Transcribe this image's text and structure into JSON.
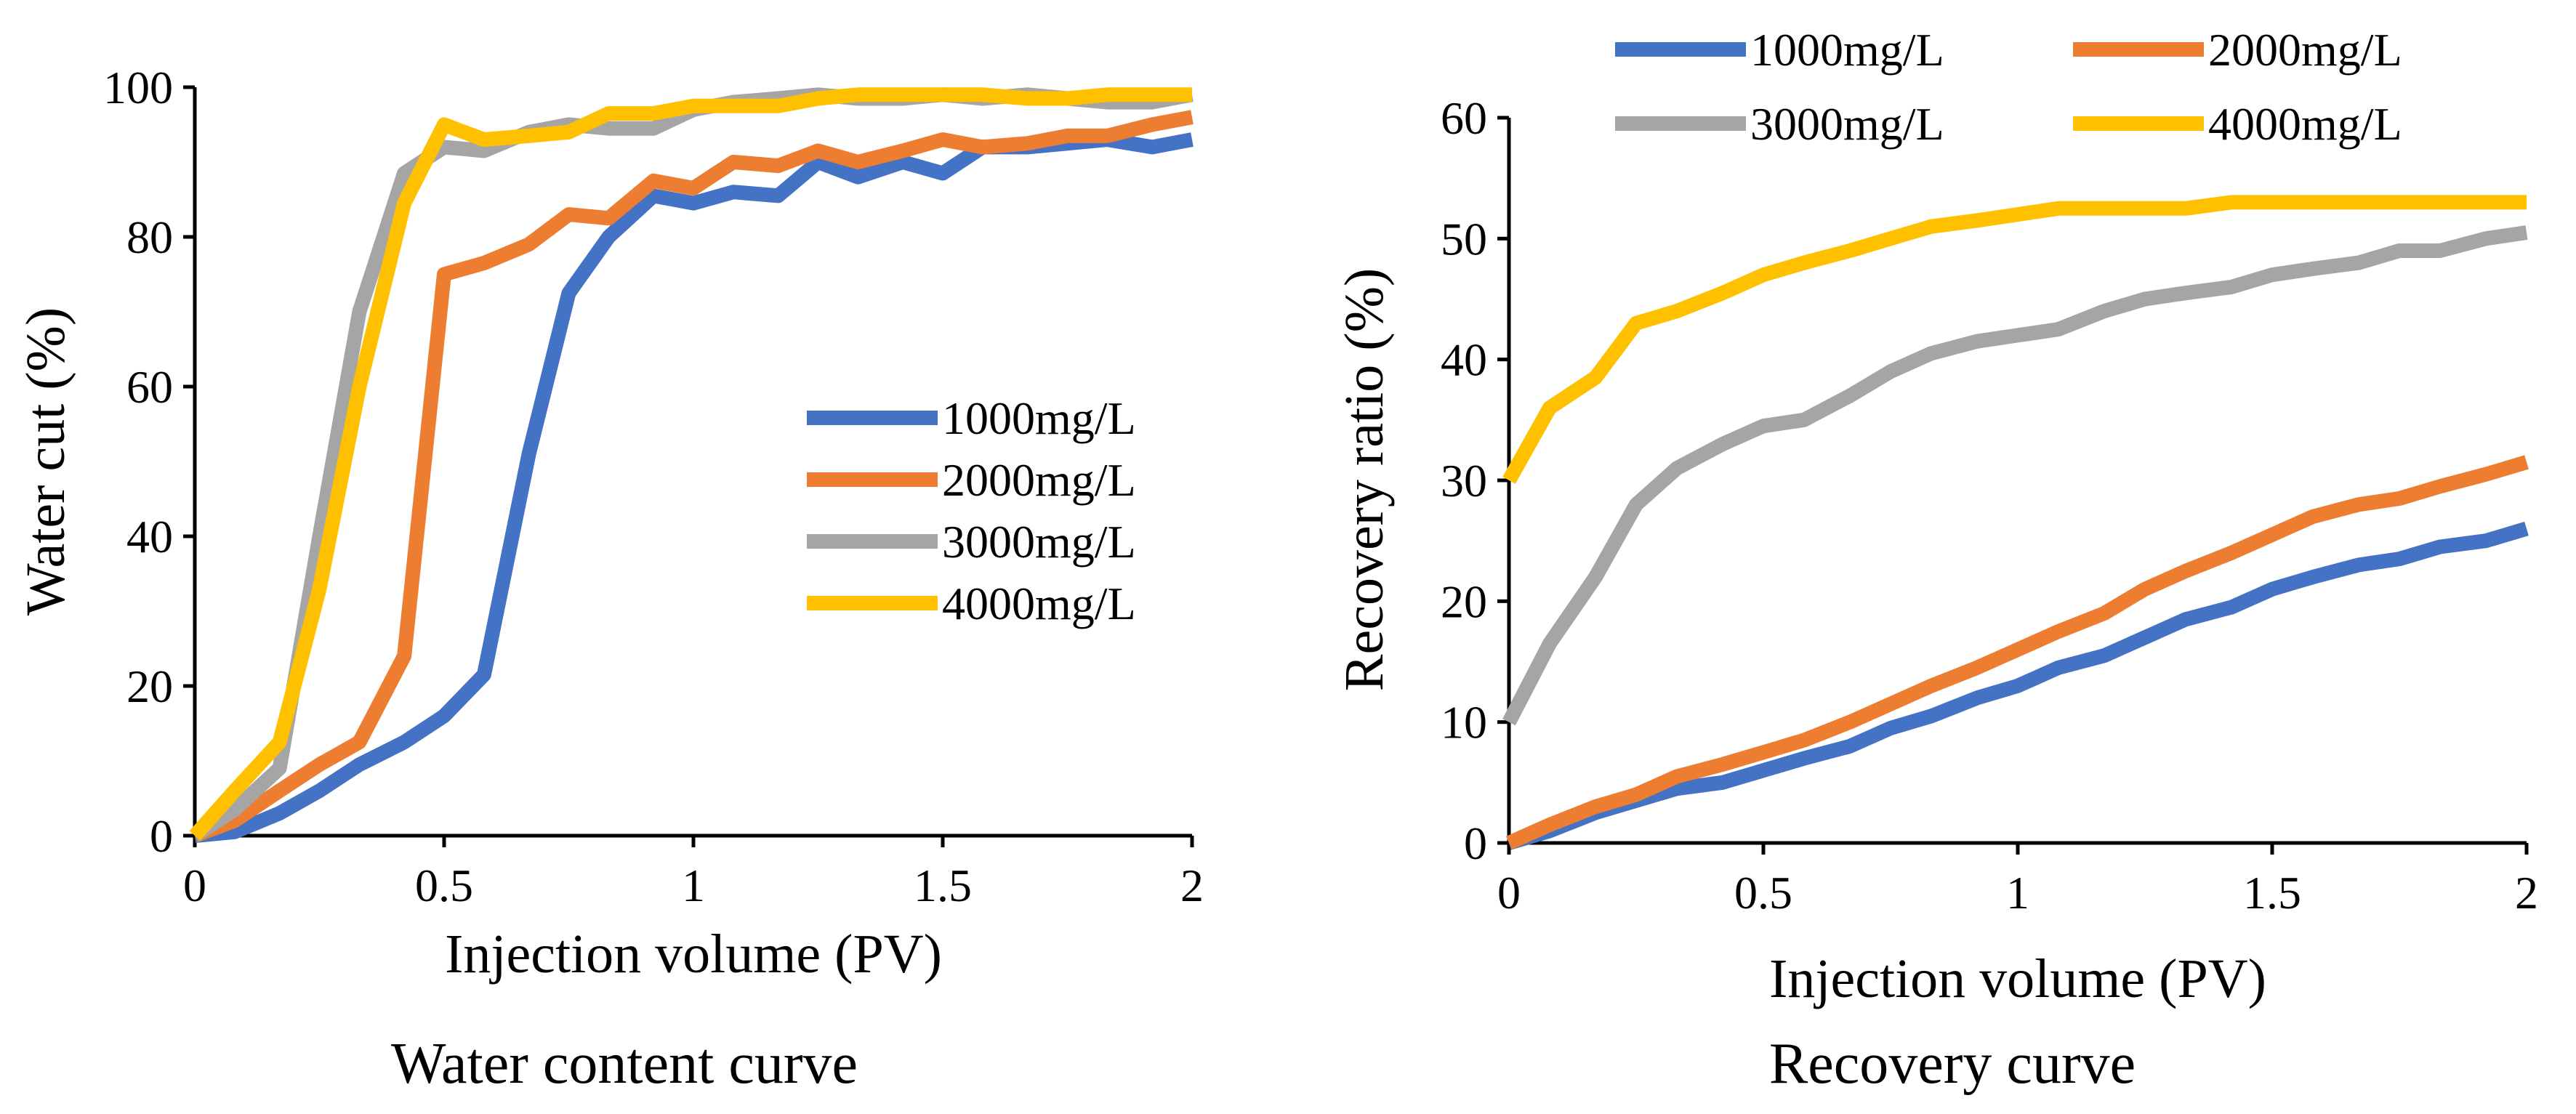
{
  "colors": {
    "1000mg/L": "#4472C4",
    "2000mg/L": "#ED7D31",
    "3000mg/L": "#A5A5A5",
    "4000mg/L": "#FFC000"
  },
  "chart_data": [
    {
      "type": "line",
      "caption": "Water content curve",
      "xlabel": "Injection volume (PV)",
      "ylabel": "Water cut (%)",
      "xlim": [
        0,
        2
      ],
      "ylim": [
        0,
        100
      ],
      "xticks": [
        0,
        0.5,
        1,
        1.5,
        2
      ],
      "xtick_labels": [
        "0",
        "0.5",
        "1",
        "1.5",
        "2"
      ],
      "yticks": [
        0,
        20,
        40,
        60,
        80,
        100
      ],
      "ytick_labels": [
        "0",
        "20",
        "40",
        "60",
        "80",
        "100"
      ],
      "legend_position": "center-right",
      "x": [
        0,
        0.08,
        0.17,
        0.25,
        0.33,
        0.42,
        0.5,
        0.58,
        0.67,
        0.75,
        0.83,
        0.92,
        1.0,
        1.08,
        1.17,
        1.25,
        1.33,
        1.42,
        1.5,
        1.58,
        1.67,
        1.75,
        1.83,
        1.92,
        2.0
      ],
      "series": [
        {
          "name": "1000mg/L",
          "values": [
            0,
            0.5,
            3,
            6,
            9.5,
            12.5,
            16,
            21.5,
            51,
            72.5,
            80,
            85.5,
            84.5,
            86,
            85.5,
            90,
            88,
            90,
            88.5,
            92,
            92,
            92.5,
            93,
            92,
            93
          ]
        },
        {
          "name": "2000mg/L",
          "values": [
            0,
            2,
            6,
            9.5,
            12.5,
            24,
            75,
            76.5,
            79,
            83,
            82.5,
            87.5,
            86.5,
            90,
            89.5,
            91.5,
            90,
            91.5,
            93,
            92,
            92.5,
            93.5,
            93.5,
            95,
            96
          ]
        },
        {
          "name": "3000mg/L",
          "values": [
            0,
            3.5,
            9,
            40,
            70,
            88.5,
            92,
            91.5,
            94,
            95,
            94.5,
            94.5,
            97,
            98,
            98.5,
            99,
            98.5,
            98.5,
            99,
            98.5,
            99,
            98.5,
            98,
            98,
            99
          ]
        },
        {
          "name": "4000mg/L",
          "values": [
            0,
            6,
            12.5,
            33,
            60,
            84.5,
            95,
            93,
            93.5,
            94,
            96.5,
            96.5,
            97.5,
            97.5,
            97.5,
            98.5,
            99,
            99,
            99,
            99,
            98.5,
            98.5,
            99,
            99,
            99
          ]
        }
      ]
    },
    {
      "type": "line",
      "caption": "Recovery curve",
      "xlabel": "Injection volume (PV)",
      "ylabel": "Recovery ratio (%)",
      "xlim": [
        0,
        2
      ],
      "ylim": [
        0,
        60
      ],
      "xticks": [
        0,
        0.5,
        1,
        1.5,
        2
      ],
      "xtick_labels": [
        "0",
        "0.5",
        "1",
        "1.5",
        "2"
      ],
      "yticks": [
        0,
        10,
        20,
        30,
        40,
        50,
        60
      ],
      "ytick_labels": [
        "0",
        "10",
        "20",
        "30",
        "40",
        "50",
        "60"
      ],
      "legend_position": "top",
      "x": [
        0,
        0.08,
        0.17,
        0.25,
        0.33,
        0.42,
        0.5,
        0.58,
        0.67,
        0.75,
        0.83,
        0.92,
        1.0,
        1.08,
        1.17,
        1.25,
        1.33,
        1.42,
        1.5,
        1.58,
        1.67,
        1.75,
        1.83,
        1.92,
        2.0
      ],
      "series": [
        {
          "name": "1000mg/L",
          "values": [
            0,
            1,
            2.5,
            3.5,
            4.5,
            5,
            6,
            7,
            8,
            9.5,
            10.5,
            12,
            13,
            14.5,
            15.5,
            17,
            18.5,
            19.5,
            21,
            22,
            23,
            23.5,
            24.5,
            25,
            26
          ]
        },
        {
          "name": "2000mg/L",
          "values": [
            0,
            1.5,
            3,
            4,
            5.5,
            6.5,
            7.5,
            8.5,
            10,
            11.5,
            13,
            14.5,
            16,
            17.5,
            19,
            21,
            22.5,
            24,
            25.5,
            27,
            28,
            28.5,
            29.5,
            30.5,
            31.5
          ]
        },
        {
          "name": "3000mg/L",
          "values": [
            10,
            16.5,
            22,
            28,
            31,
            33,
            34.5,
            35,
            37,
            39,
            40.5,
            41.5,
            42,
            42.5,
            44,
            45,
            45.5,
            46,
            47,
            47.5,
            48,
            49,
            49,
            50,
            50.5
          ]
        },
        {
          "name": "4000mg/L",
          "values": [
            30,
            36,
            38.5,
            43,
            44,
            45.5,
            47,
            48,
            49,
            50,
            51,
            51.5,
            52,
            52.5,
            52.5,
            52.5,
            52.5,
            53,
            53,
            53,
            53,
            53,
            53,
            53,
            53
          ]
        }
      ]
    }
  ]
}
